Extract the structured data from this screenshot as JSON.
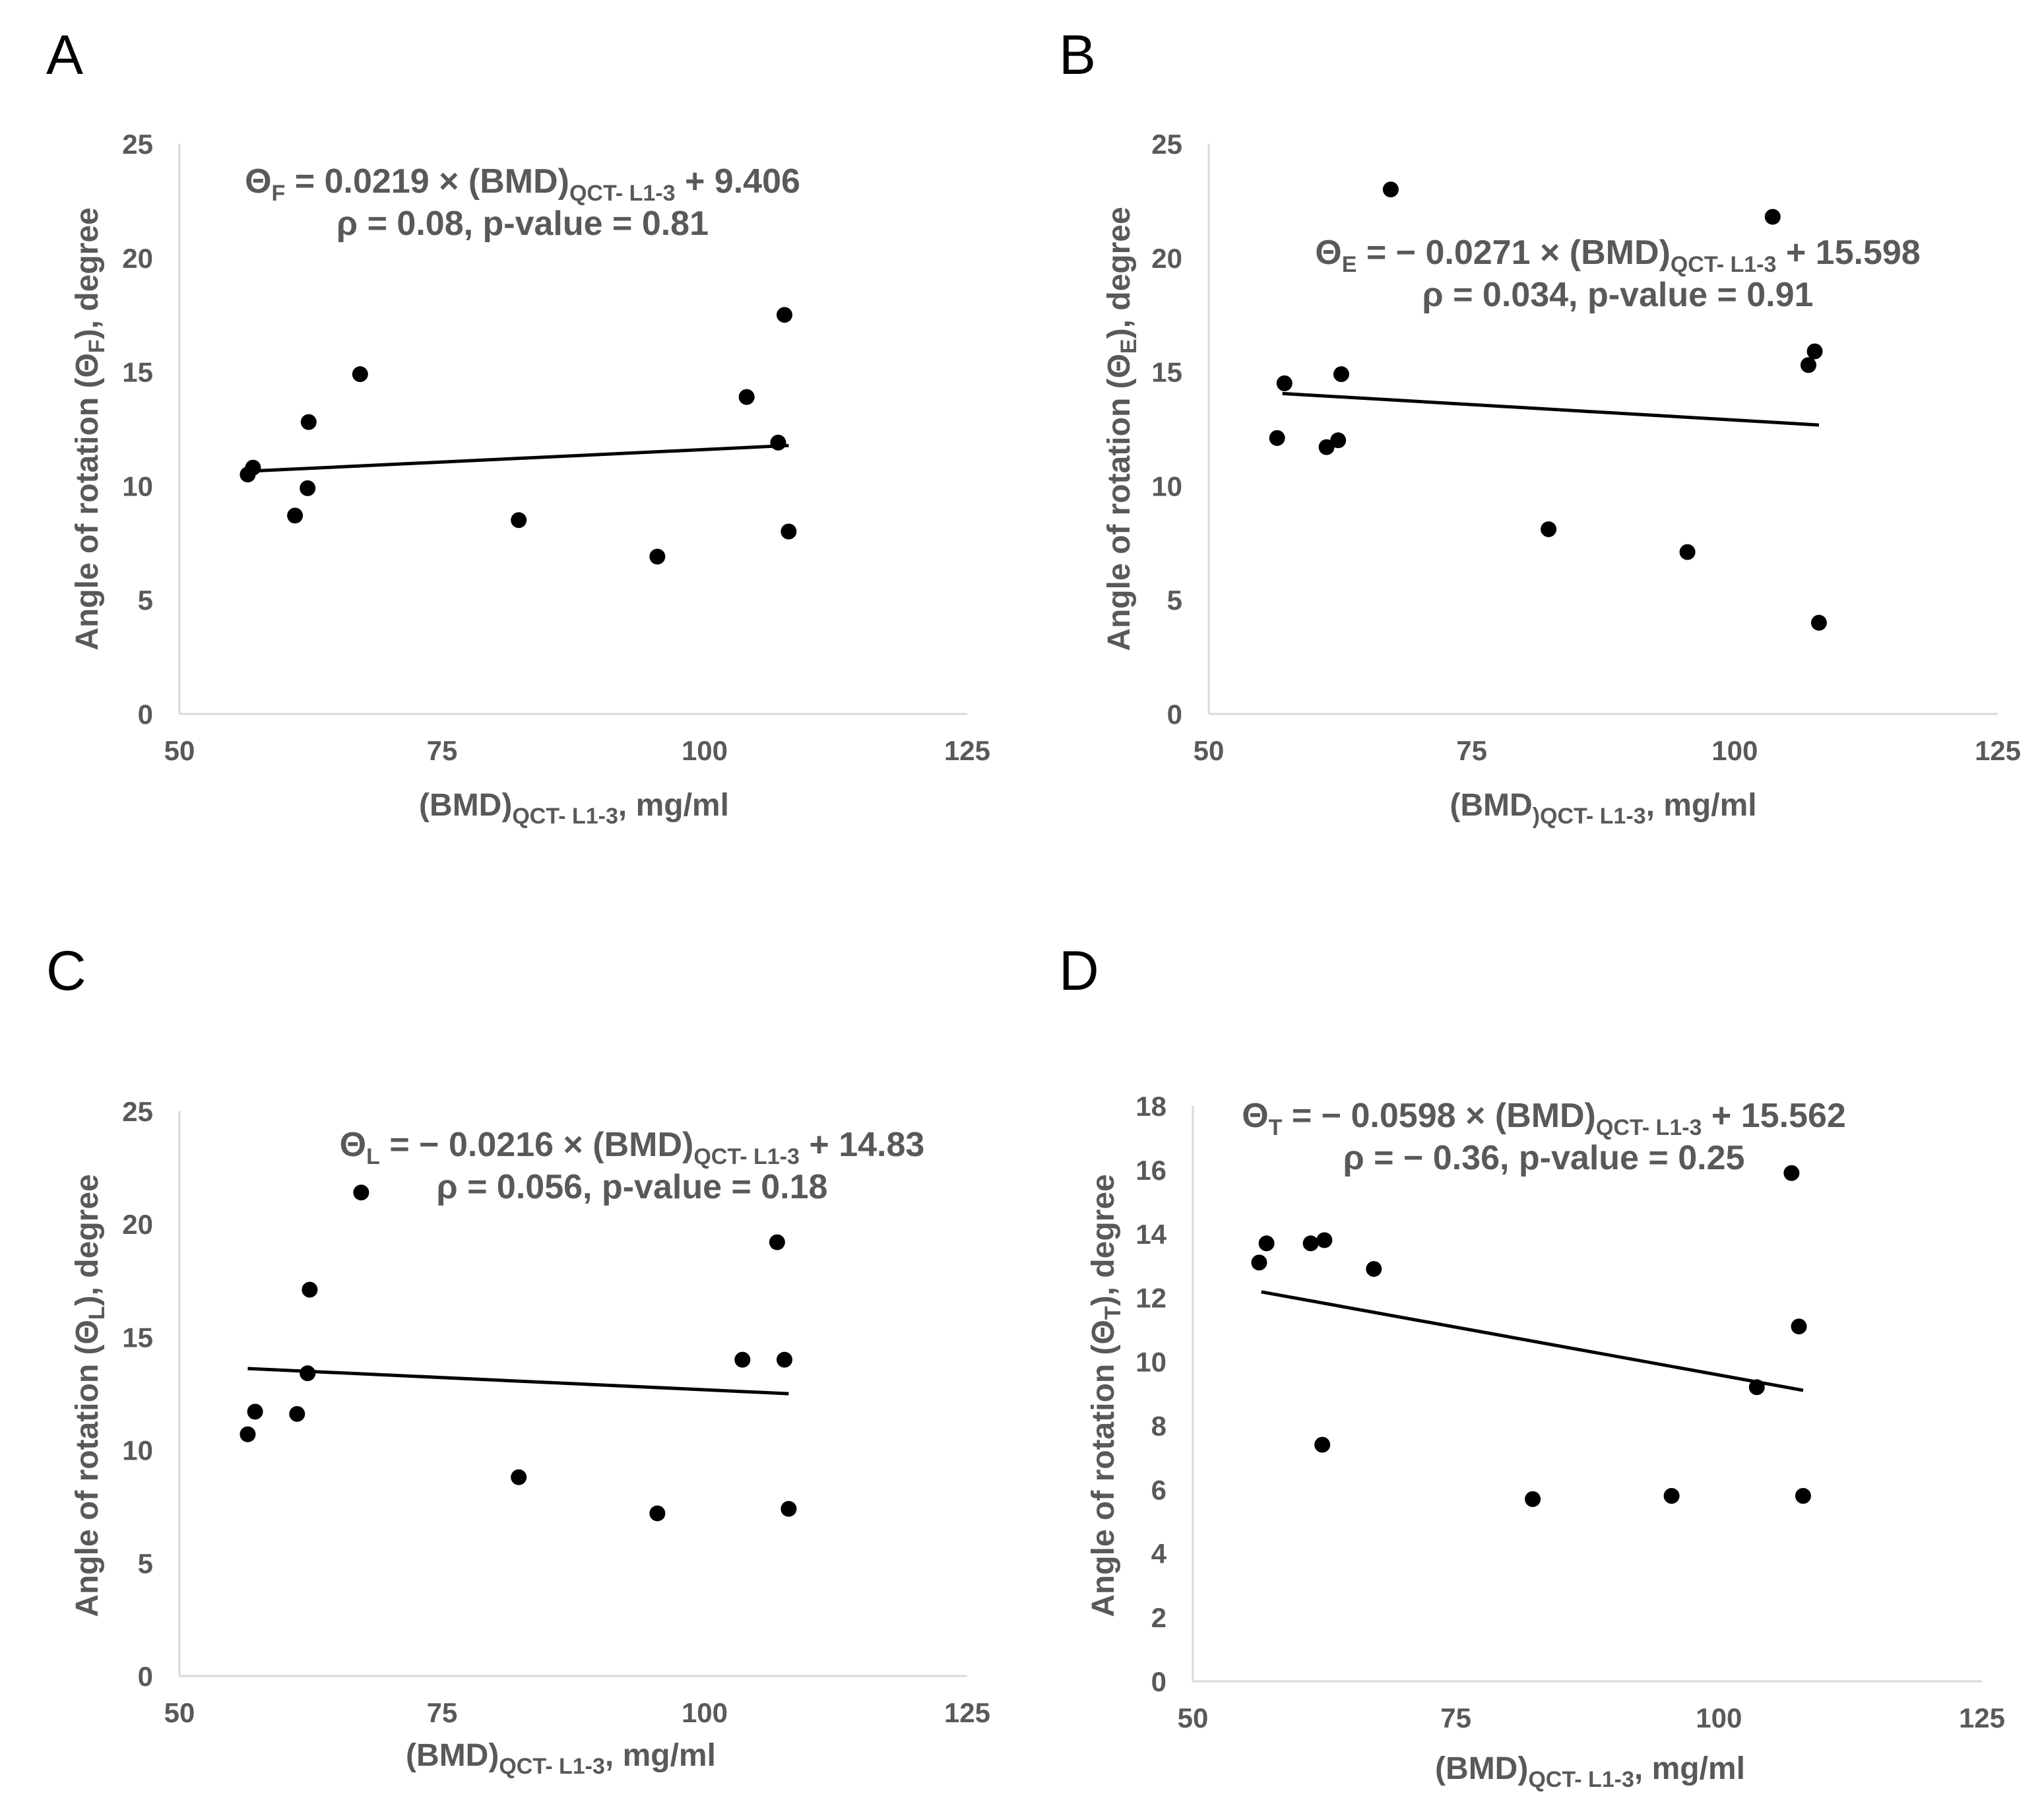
{
  "chart_data": [
    {
      "panel": "A",
      "type": "scatter",
      "xlabel": {
        "base": "(BMD)",
        "sub": "QCT- L1-3",
        "rest": ", mg/ml"
      },
      "ylabel": {
        "main": "Angle of rotation (Θ",
        "sub": "F",
        "end": "), degree"
      },
      "xlim": [
        50,
        125
      ],
      "xticks": [
        50,
        75,
        100,
        125
      ],
      "ylim": [
        0,
        25
      ],
      "yticks": [
        0,
        5,
        10,
        15,
        20,
        25
      ],
      "equation": {
        "sym": "Θ",
        "sub": "F",
        "lhs": " = 0.0219 × (BMD)",
        "sub2": "QCT- L1-3",
        "rhs": " + 9.406"
      },
      "stats": "ρ = 0.08, p-value = 0.81",
      "trendline": {
        "slope": 0.0219,
        "intercept": 9.406,
        "xrange": [
          56.5,
          108
        ]
      },
      "points": [
        {
          "x": 56.5,
          "y": 10.5
        },
        {
          "x": 57,
          "y": 10.8
        },
        {
          "x": 61,
          "y": 8.7
        },
        {
          "x": 62.2,
          "y": 9.9
        },
        {
          "x": 62.3,
          "y": 12.8
        },
        {
          "x": 67.2,
          "y": 14.9
        },
        {
          "x": 82.3,
          "y": 8.5
        },
        {
          "x": 95.5,
          "y": 6.9
        },
        {
          "x": 104,
          "y": 13.9
        },
        {
          "x": 107,
          "y": 11.9
        },
        {
          "x": 107.6,
          "y": 17.5
        },
        {
          "x": 108,
          "y": 8.0
        }
      ]
    },
    {
      "panel": "B",
      "type": "scatter",
      "xlabel": {
        "base": "(BMD",
        "sub": ")QCT- L1-3",
        "rest": ", mg/ml"
      },
      "ylabel": {
        "main": "Angle of rotation (Θ",
        "sub": "E",
        "end": "), degree"
      },
      "xlim": [
        50,
        125
      ],
      "xticks": [
        50,
        75,
        100,
        125
      ],
      "ylim": [
        0,
        25
      ],
      "yticks": [
        0,
        5,
        10,
        15,
        20,
        25
      ],
      "equation": {
        "sym": "Θ",
        "sub": "E",
        "lhs": " = − 0.0271 × (BMD)",
        "sub2": "QCT- L1-3",
        "rhs": " + 15.598"
      },
      "stats": "ρ = 0.034, p-value = 0.91",
      "trendline": {
        "slope": -0.0271,
        "intercept": 15.598,
        "xrange": [
          57,
          108
        ]
      },
      "points": [
        {
          "x": 56.5,
          "y": 12.1
        },
        {
          "x": 57.2,
          "y": 14.5
        },
        {
          "x": 61.2,
          "y": 11.7
        },
        {
          "x": 62.3,
          "y": 12.0
        },
        {
          "x": 62.6,
          "y": 14.9
        },
        {
          "x": 67.3,
          "y": 23.0
        },
        {
          "x": 82.3,
          "y": 8.1
        },
        {
          "x": 95.5,
          "y": 7.1
        },
        {
          "x": 103.6,
          "y": 21.8
        },
        {
          "x": 107,
          "y": 15.3
        },
        {
          "x": 107.6,
          "y": 15.9
        },
        {
          "x": 108,
          "y": 4.0
        }
      ]
    },
    {
      "panel": "C",
      "type": "scatter",
      "xlabel": {
        "base": "(BMD)",
        "sub": "QCT- L1-3",
        "rest": ", mg/ml"
      },
      "ylabel": {
        "main": "Angle of rotation (Θ",
        "sub": "L",
        "end": "), degree"
      },
      "xlim": [
        50,
        125
      ],
      "xticks": [
        50,
        75,
        100,
        125
      ],
      "ylim": [
        0,
        25
      ],
      "yticks": [
        0,
        5,
        10,
        15,
        20,
        25
      ],
      "equation": {
        "sym": "Θ",
        "sub": "L",
        "lhs": " = − 0.0216 × (BMD)",
        "sub2": "QCT- L1-3",
        "rhs": " + 14.83"
      },
      "stats": "ρ = 0.056, p-value = 0.18",
      "trendline": {
        "slope": -0.0216,
        "intercept": 14.83,
        "xrange": [
          56.5,
          108
        ]
      },
      "points": [
        {
          "x": 56.5,
          "y": 10.7
        },
        {
          "x": 57.2,
          "y": 11.7
        },
        {
          "x": 61.2,
          "y": 11.6
        },
        {
          "x": 62.2,
          "y": 13.4
        },
        {
          "x": 62.4,
          "y": 17.1
        },
        {
          "x": 67.3,
          "y": 21.4
        },
        {
          "x": 82.3,
          "y": 8.8
        },
        {
          "x": 95.5,
          "y": 7.2
        },
        {
          "x": 103.6,
          "y": 14.0
        },
        {
          "x": 106.9,
          "y": 19.2
        },
        {
          "x": 107.6,
          "y": 14.0
        },
        {
          "x": 108,
          "y": 7.4
        }
      ]
    },
    {
      "panel": "D",
      "type": "scatter",
      "xlabel": {
        "base": "(BMD)",
        "sub": "QCT- L1-3",
        "rest": ", mg/ml"
      },
      "ylabel": {
        "main": "Angle of rotation (Θ",
        "sub": "T",
        "end": "), degree"
      },
      "xlim": [
        50,
        125
      ],
      "xticks": [
        50,
        75,
        100,
        125
      ],
      "ylim": [
        0,
        18
      ],
      "yticks": [
        0,
        2,
        4,
        6,
        8,
        10,
        12,
        14,
        16,
        18
      ],
      "equation": {
        "sym": "Θ",
        "sub": "T",
        "lhs": " = − 0.0598 × (BMD)",
        "sub2": "QCT- L1-3",
        "rhs": " + 15.562"
      },
      "stats": "ρ = − 0.36, p-value = 0.25",
      "trendline": {
        "slope": -0.0598,
        "intercept": 15.562,
        "xrange": [
          56.5,
          108
        ]
      },
      "points": [
        {
          "x": 56.3,
          "y": 13.1
        },
        {
          "x": 57,
          "y": 13.7
        },
        {
          "x": 61.2,
          "y": 13.7
        },
        {
          "x": 62.3,
          "y": 7.4
        },
        {
          "x": 62.5,
          "y": 13.8
        },
        {
          "x": 67.2,
          "y": 12.9
        },
        {
          "x": 82.3,
          "y": 5.7
        },
        {
          "x": 95.5,
          "y": 5.8
        },
        {
          "x": 103.6,
          "y": 9.2
        },
        {
          "x": 106.9,
          "y": 15.9
        },
        {
          "x": 107.6,
          "y": 11.1
        },
        {
          "x": 108,
          "y": 5.8
        }
      ]
    }
  ]
}
